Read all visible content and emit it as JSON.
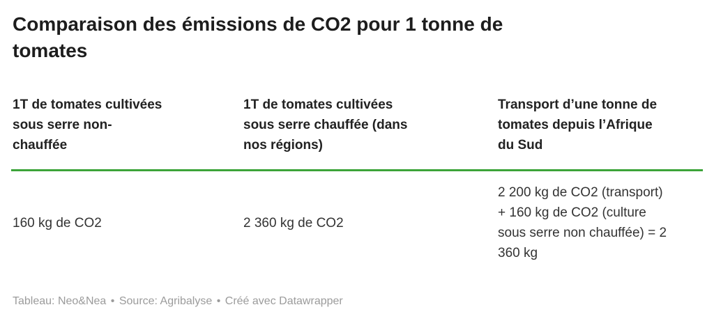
{
  "title_display": "Comparaison des émissions de CO2 pour 1 tonne de\ntomates",
  "table": {
    "headers": [
      {
        "text": "1T de tomates cultivées\nsous serre non-\nchauffée"
      },
      {
        "text": "1T de tomates cultivées\nsous serre chauffée (dans\nnos régions)"
      },
      {
        "text": "Transport d’une tonne de\ntomates depuis l’Afrique\ndu Sud"
      }
    ],
    "row": [
      {
        "text": "160 kg de CO2"
      },
      {
        "text": "2 360 kg de CO2"
      },
      {
        "text": "2 200 kg de CO2 (transport)\n+ 160 kg de CO2 (culture\nsous serre non chauffée) = 2\n360 kg"
      }
    ]
  },
  "chart_data": {
    "type": "table",
    "title": "Comparaison des émissions de CO2 pour 1 tonne de tomates",
    "columns": [
      "1T de tomates cultivées sous serre non-chauffée",
      "1T de tomates cultivées sous serre chauffée (dans nos régions)",
      "Transport d’une tonne de tomates depuis l’Afrique du Sud"
    ],
    "rows": [
      [
        "160 kg de CO2",
        "2 360 kg de CO2",
        "2 200 kg de CO2 (transport) + 160 kg de CO2 (culture sous serre non chauffée) = 2 360 kg"
      ]
    ],
    "values_kg_co2": [
      160,
      2360,
      2360
    ],
    "layout_hints": {
      "header_rule": true,
      "grid": false,
      "legend": "none"
    }
  },
  "footer": {
    "attribution_label": "Tableau:",
    "attribution_value": "Neo&Nea",
    "separator": "•",
    "source_label": "Source:",
    "source_value": "Agribalyse",
    "created_with": "Créé avec Datawrapper"
  },
  "colors": {
    "header_rule": "#3CA439",
    "title_text": "#1d1d1d",
    "header_text": "#222222",
    "body_text": "#333333",
    "footer_text": "#9b9b9b"
  }
}
